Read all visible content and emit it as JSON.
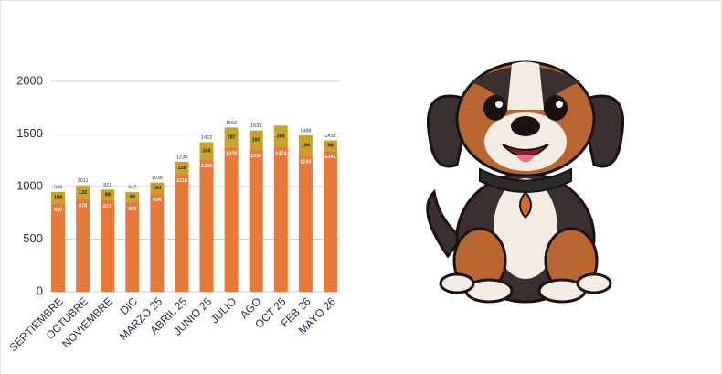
{
  "chart_data": {
    "type": "stacked_bar",
    "categories": [
      "SEPTIEMBRE",
      "OCTUBRE",
      "NOVIEMBRE",
      "DIC",
      "MARZO 25",
      "ABRIL 25",
      "JUNIO 25",
      "JULIO",
      "AGO",
      "OCT 25",
      "FEB 26",
      "MAYO 26"
    ],
    "series": [
      {
        "color": "#e8793a",
        "values": [
          840,
          879,
          872,
          848,
          934,
          1118,
          1258,
          1375,
          1353,
          1374,
          1294,
          1341
        ]
      },
      {
        "color": "#c9a227",
        "values": [
          109,
          132,
          99,
          99,
          104,
          118,
          164,
          187,
          180,
          206,
          194,
          98
        ]
      }
    ],
    "totals": [
      949,
      1011,
      971,
      947,
      1038,
      1236,
      1422,
      1562,
      1533,
      null,
      1488,
      1439
    ],
    "ylim": [
      0,
      2000
    ],
    "yticks": [
      0,
      500,
      1000,
      1500,
      2000
    ],
    "grid": true
  }
}
